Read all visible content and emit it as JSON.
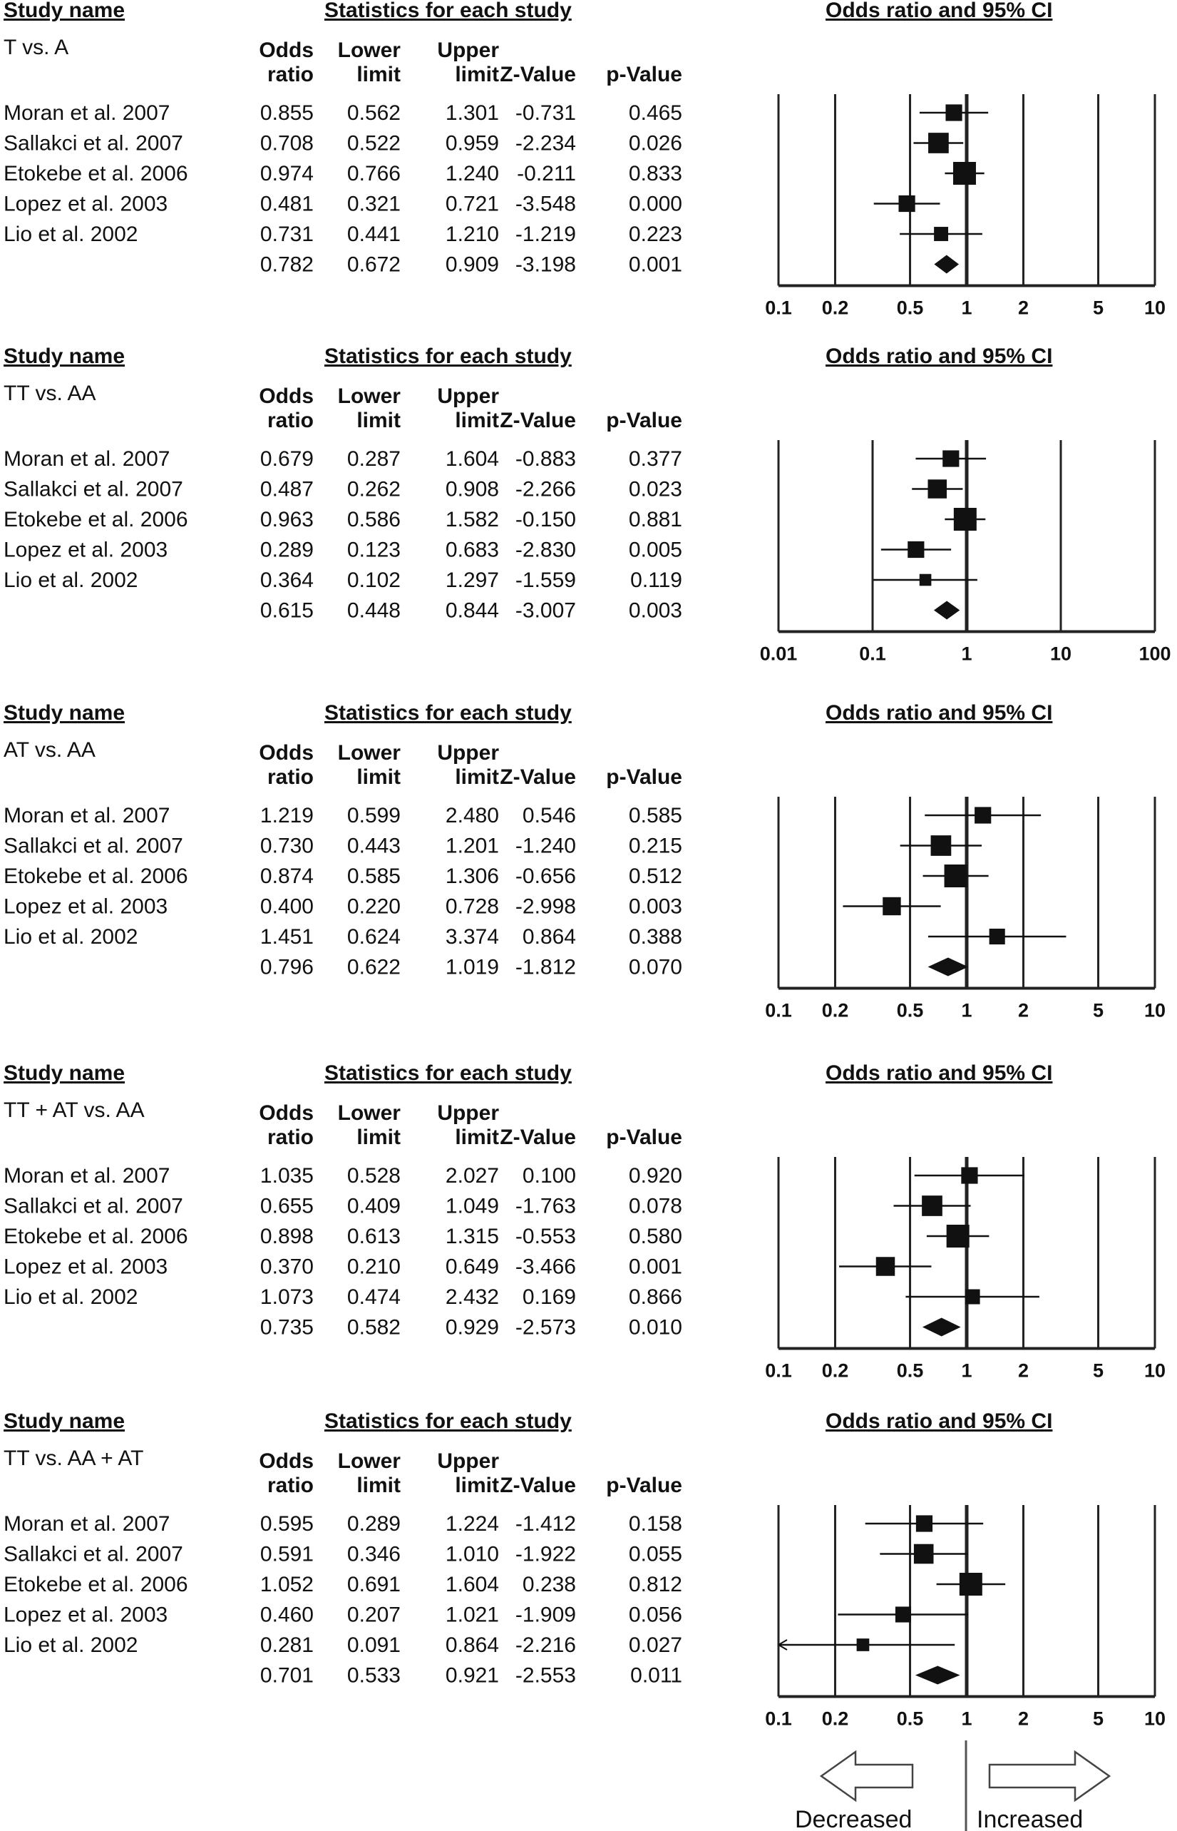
{
  "chart_data": {
    "type": "forest",
    "headers": {
      "study_name": "Study name",
      "statistics": "Statistics for each study",
      "plot_title": "Odds ratio and 95% CI"
    },
    "columns": [
      [
        "Odds",
        "ratio"
      ],
      [
        "Lower",
        "limit"
      ],
      [
        "Upper",
        "limit"
      ],
      [
        "",
        "Z-Value"
      ],
      [
        "",
        "p-Value"
      ]
    ],
    "panels": [
      {
        "comparison": "T vs. A",
        "x_ticks": [
          "0.1",
          "0.2",
          "0.5",
          "1",
          "2",
          "5",
          "10"
        ],
        "x_tick_values": [
          0.1,
          0.2,
          0.5,
          1,
          2,
          5,
          10
        ],
        "studies": [
          {
            "name": "Moran et al. 2007",
            "or": "0.855",
            "lower": "0.562",
            "upper": "1.301",
            "z": "-0.731",
            "p": "0.465",
            "weight": 0.6
          },
          {
            "name": "Sallakci et al. 2007",
            "or": "0.708",
            "lower": "0.522",
            "upper": "0.959",
            "z": "-2.234",
            "p": "0.026",
            "weight": 0.85
          },
          {
            "name": "Etokebe et al. 2006",
            "or": "0.974",
            "lower": "0.766",
            "upper": "1.240",
            "z": "-0.211",
            "p": "0.833",
            "weight": 1.0
          },
          {
            "name": "Lopez et al. 2003",
            "or": "0.481",
            "lower": "0.321",
            "upper": "0.721",
            "z": "-3.548",
            "p": "0.000",
            "weight": 0.6
          },
          {
            "name": "Lio et al. 2002",
            "or": "0.731",
            "lower": "0.441",
            "upper": "1.210",
            "z": "-1.219",
            "p": "0.223",
            "weight": 0.45
          }
        ],
        "pooled": {
          "or": "0.782",
          "lower": "0.672",
          "upper": "0.909",
          "z": "-3.198",
          "p": "0.001"
        }
      },
      {
        "comparison": "TT vs. AA",
        "x_ticks": [
          "0.01",
          "0.1",
          "1",
          "10",
          "100"
        ],
        "x_tick_values": [
          0.01,
          0.1,
          1,
          10,
          100
        ],
        "studies": [
          {
            "name": "Moran et al. 2007",
            "or": "0.679",
            "lower": "0.287",
            "upper": "1.604",
            "z": "-0.883",
            "p": "0.377",
            "weight": 0.6
          },
          {
            "name": "Sallakci et al. 2007",
            "or": "0.487",
            "lower": "0.262",
            "upper": "0.908",
            "z": "-2.266",
            "p": "0.023",
            "weight": 0.75
          },
          {
            "name": "Etokebe et al. 2006",
            "or": "0.963",
            "lower": "0.586",
            "upper": "1.582",
            "z": "-0.150",
            "p": "0.881",
            "weight": 1.0
          },
          {
            "name": "Lopez et al. 2003",
            "or": "0.289",
            "lower": "0.123",
            "upper": "0.683",
            "z": "-2.830",
            "p": "0.005",
            "weight": 0.6
          },
          {
            "name": "Lio et al. 2002",
            "or": "0.364",
            "lower": "0.102",
            "upper": "1.297",
            "z": "-1.559",
            "p": "0.119",
            "weight": 0.3
          }
        ],
        "pooled": {
          "or": "0.615",
          "lower": "0.448",
          "upper": "0.844",
          "z": "-3.007",
          "p": "0.003"
        }
      },
      {
        "comparison": "AT vs. AA",
        "x_ticks": [
          "0.1",
          "0.2",
          "0.5",
          "1",
          "2",
          "5",
          "10"
        ],
        "x_tick_values": [
          0.1,
          0.2,
          0.5,
          1,
          2,
          5,
          10
        ],
        "studies": [
          {
            "name": "Moran et al. 2007",
            "or": "1.219",
            "lower": "0.599",
            "upper": "2.480",
            "z": "0.546",
            "p": "0.585",
            "weight": 0.6
          },
          {
            "name": "Sallakci et al. 2007",
            "or": "0.730",
            "lower": "0.443",
            "upper": "1.201",
            "z": "-1.240",
            "p": "0.215",
            "weight": 0.85
          },
          {
            "name": "Etokebe et al. 2006",
            "or": "0.874",
            "lower": "0.585",
            "upper": "1.306",
            "z": "-0.656",
            "p": "0.512",
            "weight": 1.0
          },
          {
            "name": "Lopez et al. 2003",
            "or": "0.400",
            "lower": "0.220",
            "upper": "0.728",
            "z": "-2.998",
            "p": "0.003",
            "weight": 0.7
          },
          {
            "name": "Lio et al. 2002",
            "or": "1.451",
            "lower": "0.624",
            "upper": "3.374",
            "z": "0.864",
            "p": "0.388",
            "weight": 0.55
          }
        ],
        "pooled": {
          "or": "0.796",
          "lower": "0.622",
          "upper": "1.019",
          "z": "-1.812",
          "p": "0.070"
        }
      },
      {
        "comparison": "TT + AT vs. AA",
        "x_ticks": [
          "0.1",
          "0.2",
          "0.5",
          "1",
          "2",
          "5",
          "10"
        ],
        "x_tick_values": [
          0.1,
          0.2,
          0.5,
          1,
          2,
          5,
          10
        ],
        "studies": [
          {
            "name": "Moran et al. 2007",
            "or": "1.035",
            "lower": "0.528",
            "upper": "2.027",
            "z": "0.100",
            "p": "0.920",
            "weight": 0.6
          },
          {
            "name": "Sallakci et al. 2007",
            "or": "0.655",
            "lower": "0.409",
            "upper": "1.049",
            "z": "-1.763",
            "p": "0.078",
            "weight": 0.85
          },
          {
            "name": "Etokebe et al. 2006",
            "or": "0.898",
            "lower": "0.613",
            "upper": "1.315",
            "z": "-0.553",
            "p": "0.580",
            "weight": 1.0
          },
          {
            "name": "Lopez et al. 2003",
            "or": "0.370",
            "lower": "0.210",
            "upper": "0.649",
            "z": "-3.466",
            "p": "0.001",
            "weight": 0.75
          },
          {
            "name": "Lio et al. 2002",
            "or": "1.073",
            "lower": "0.474",
            "upper": "2.432",
            "z": "0.169",
            "p": "0.866",
            "weight": 0.5
          }
        ],
        "pooled": {
          "or": "0.735",
          "lower": "0.582",
          "upper": "0.929",
          "z": "-2.573",
          "p": "0.010"
        }
      },
      {
        "comparison": "TT vs. AA + AT",
        "x_ticks": [
          "0.1",
          "0.2",
          "0.5",
          "1",
          "2",
          "5",
          "10"
        ],
        "x_tick_values": [
          0.1,
          0.2,
          0.5,
          1,
          2,
          5,
          10
        ],
        "studies": [
          {
            "name": "Moran et al. 2007",
            "or": "0.595",
            "lower": "0.289",
            "upper": "1.224",
            "z": "-1.412",
            "p": "0.158",
            "weight": 0.6
          },
          {
            "name": "Sallakci et al. 2007",
            "or": "0.591",
            "lower": "0.346",
            "upper": "1.010",
            "z": "-1.922",
            "p": "0.055",
            "weight": 0.8
          },
          {
            "name": "Etokebe et al. 2006",
            "or": "1.052",
            "lower": "0.691",
            "upper": "1.604",
            "z": "0.238",
            "p": "0.812",
            "weight": 1.0
          },
          {
            "name": "Lopez et al. 2003",
            "or": "0.460",
            "lower": "0.207",
            "upper": "1.021",
            "z": "-1.909",
            "p": "0.056",
            "weight": 0.55
          },
          {
            "name": "Lio et al. 2002",
            "or": "0.281",
            "lower": "0.091",
            "upper": "0.864",
            "z": "-2.216",
            "p": "0.027",
            "weight": 0.35
          }
        ],
        "pooled": {
          "or": "0.701",
          "lower": "0.533",
          "upper": "0.921",
          "z": "-2.553",
          "p": "0.011"
        }
      }
    ],
    "direction_labels": {
      "left": "Decreased",
      "right": "Increased"
    }
  }
}
